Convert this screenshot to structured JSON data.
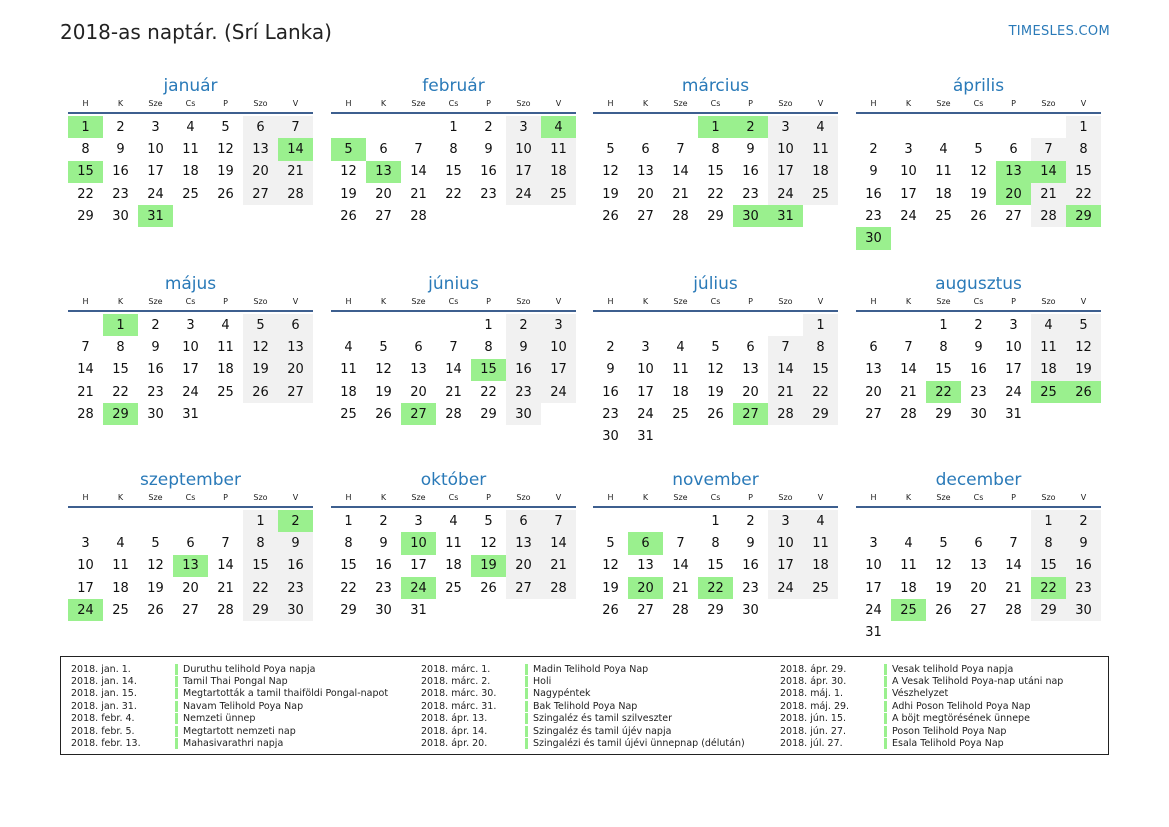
{
  "title": "2018-as naptár. (Srí Lanka)",
  "site": "TIMESLES.COM",
  "colors": {
    "accent": "#2a7ab8",
    "holiday": "#9af08e",
    "weekend": "#f1f1f1",
    "rule": "#3d5f8f"
  },
  "weekdays": [
    "H",
    "K",
    "Sze",
    "Cs",
    "P",
    "Szo",
    "V"
  ],
  "months": [
    {
      "name": "január",
      "offset": 0,
      "days": 31,
      "holidays": [
        1,
        14,
        15,
        31
      ]
    },
    {
      "name": "február",
      "offset": 3,
      "days": 28,
      "holidays": [
        4,
        5,
        13
      ]
    },
    {
      "name": "március",
      "offset": 3,
      "days": 31,
      "holidays": [
        1,
        2,
        30,
        31
      ]
    },
    {
      "name": "április",
      "offset": 6,
      "days": 30,
      "holidays": [
        13,
        14,
        20,
        29,
        30
      ]
    },
    {
      "name": "május",
      "offset": 1,
      "days": 31,
      "holidays": [
        1,
        29
      ]
    },
    {
      "name": "június",
      "offset": 4,
      "days": 30,
      "holidays": [
        15,
        27
      ]
    },
    {
      "name": "július",
      "offset": 6,
      "days": 31,
      "holidays": [
        27
      ]
    },
    {
      "name": "augusztus",
      "offset": 2,
      "days": 31,
      "holidays": [
        22,
        25,
        26
      ]
    },
    {
      "name": "szeptember",
      "offset": 5,
      "days": 30,
      "holidays": [
        2,
        13,
        24
      ]
    },
    {
      "name": "október",
      "offset": 0,
      "days": 31,
      "holidays": [
        10,
        19,
        24
      ]
    },
    {
      "name": "november",
      "offset": 3,
      "days": 30,
      "holidays": [
        6,
        20,
        22
      ]
    },
    {
      "name": "december",
      "offset": 5,
      "days": 31,
      "holidays": [
        22,
        25
      ]
    }
  ],
  "holidays": [
    [
      {
        "date": "2018. jan. 1.",
        "name": "Duruthu telihold Poya napja"
      },
      {
        "date": "2018. jan. 14.",
        "name": "Tamil Thai Pongal Nap"
      },
      {
        "date": "2018. jan. 15.",
        "name": "Megtartották a tamil thaiföldi Pongal-napot"
      },
      {
        "date": "2018. jan. 31.",
        "name": "Navam Telihold Poya Nap"
      },
      {
        "date": "2018. febr. 4.",
        "name": "Nemzeti ünnep"
      },
      {
        "date": "2018. febr. 5.",
        "name": "Megtartott nemzeti nap"
      },
      {
        "date": "2018. febr. 13.",
        "name": "Mahasivarathri napja"
      }
    ],
    [
      {
        "date": "2018. márc. 1.",
        "name": "Madin Telihold Poya Nap"
      },
      {
        "date": "2018. márc. 2.",
        "name": "Holi"
      },
      {
        "date": "2018. márc. 30.",
        "name": "Nagypéntek"
      },
      {
        "date": "2018. márc. 31.",
        "name": "Bak Telihold Poya Nap"
      },
      {
        "date": "2018. ápr. 13.",
        "name": "Szingaléz és tamil szilveszter"
      },
      {
        "date": "2018. ápr. 14.",
        "name": "Szingaléz és tamil újév napja"
      },
      {
        "date": "2018. ápr. 20.",
        "name": "Szingalézi és tamil újévi ünnepnap (délután)"
      }
    ],
    [
      {
        "date": "2018. ápr. 29.",
        "name": "Vesak telihold Poya napja"
      },
      {
        "date": "2018. ápr. 30.",
        "name": "A Vesak Telihold Poya-nap utáni nap"
      },
      {
        "date": "2018. máj. 1.",
        "name": "Vészhelyzet"
      },
      {
        "date": "2018. máj. 29.",
        "name": "Adhi Poson Telihold Poya Nap"
      },
      {
        "date": "2018. jún. 15.",
        "name": "A böjt megtörésének ünnepe"
      },
      {
        "date": "2018. jún. 27.",
        "name": "Poson Telihold Poya Nap"
      },
      {
        "date": "2018. júl. 27.",
        "name": "Esala Telihold Poya Nap"
      }
    ]
  ]
}
